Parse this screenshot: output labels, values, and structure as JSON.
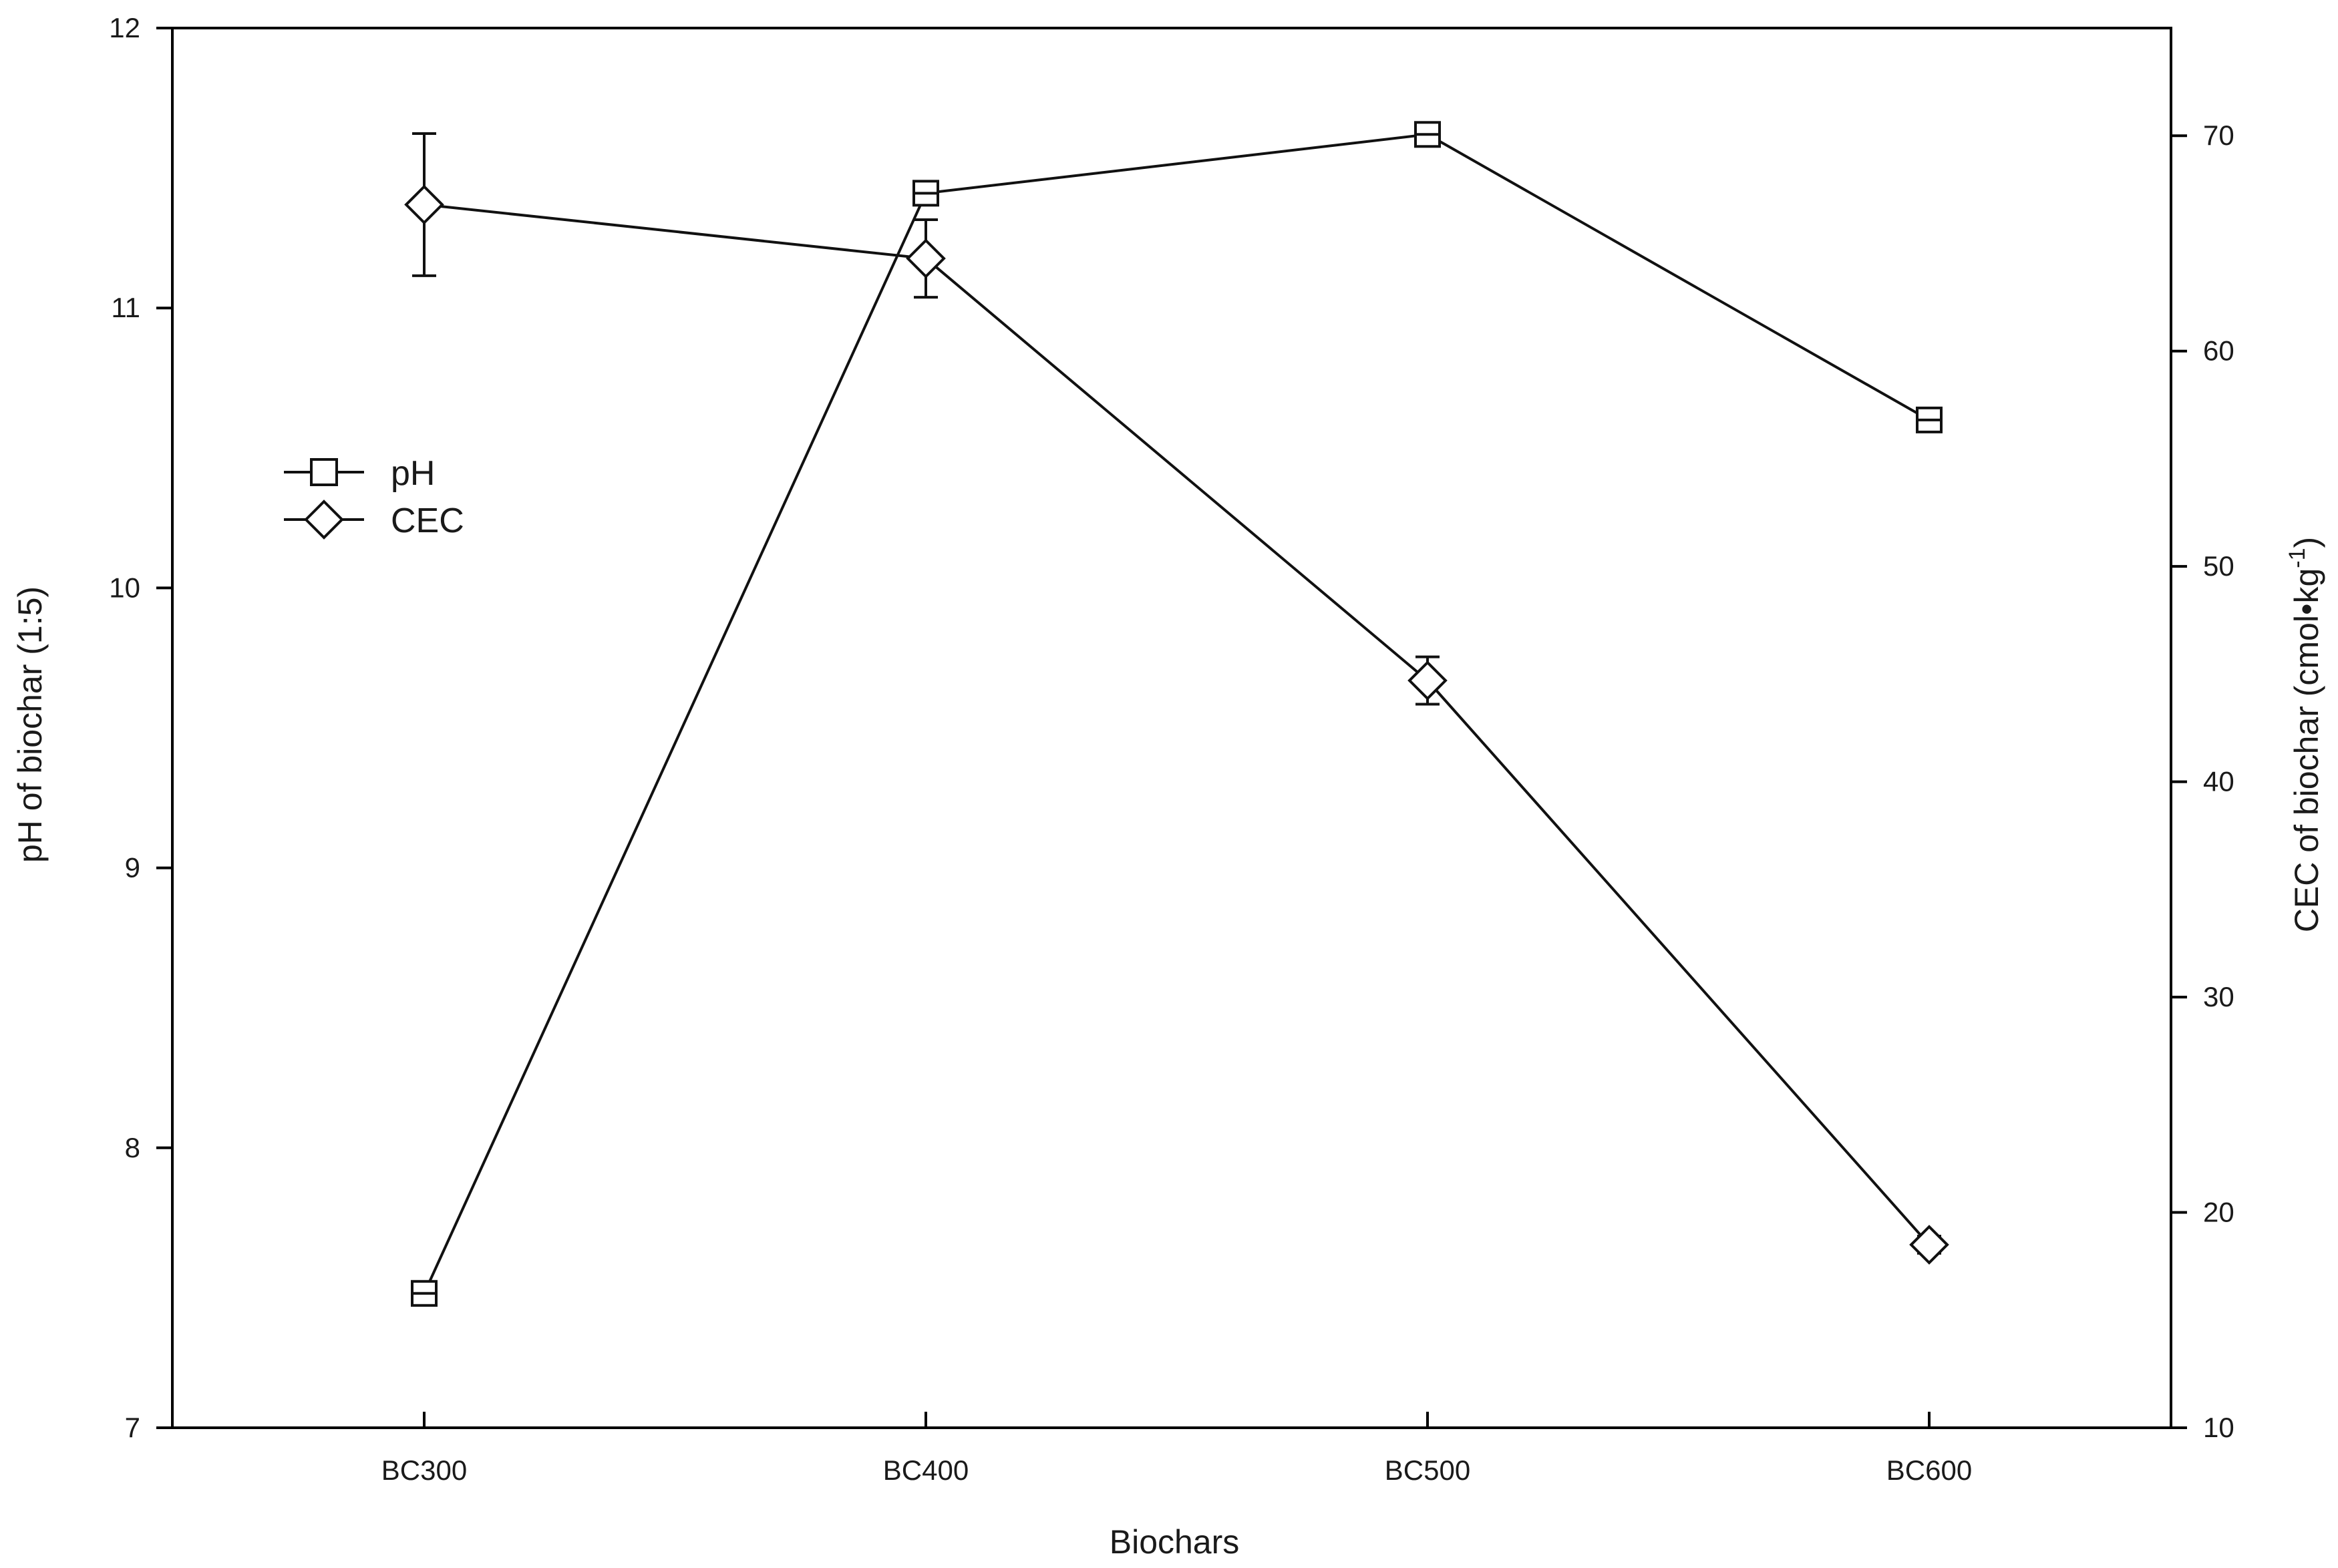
{
  "chart_data": {
    "type": "line",
    "categories": [
      "BC300",
      "BC400",
      "BC500",
      "BC600"
    ],
    "xlabel": "Biochars",
    "ylabel_left": "pH of biochar (1:5)",
    "ylabel_right": {
      "main": "CEC of biochar (cmol•kg",
      "superscript": "-1",
      "close": ")"
    },
    "ylim_left": [
      7,
      12
    ],
    "yticks_left": [
      7,
      8,
      9,
      10,
      11,
      12
    ],
    "ylim_right": [
      10,
      75
    ],
    "yticks_right": [
      10,
      20,
      30,
      40,
      50,
      60,
      70
    ],
    "series": [
      {
        "name": "pH",
        "axis": "left",
        "marker": "square",
        "values": [
          7.48,
          11.41,
          11.62,
          10.6
        ],
        "errors": [
          0.02,
          0.02,
          0.02,
          0.02
        ]
      },
      {
        "name": "CEC",
        "axis": "right",
        "marker": "diamond",
        "values": [
          66.8,
          64.3,
          44.7,
          18.5
        ],
        "errors": [
          3.3,
          1.8,
          1.1,
          0.4
        ]
      }
    ],
    "legend": {
      "position": "upper-left"
    },
    "grid": false
  }
}
